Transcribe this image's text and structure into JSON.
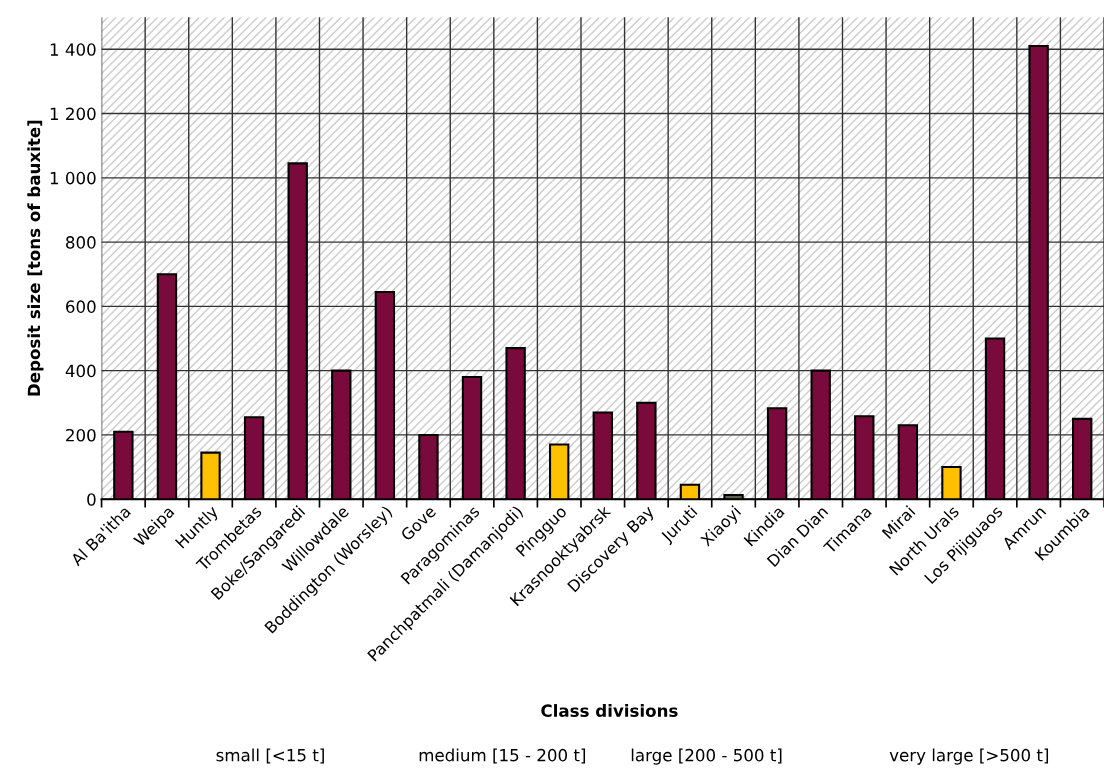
{
  "chart_data": {
    "type": "bar",
    "ylabel": "Deposit size [tons of bauxite]",
    "categories": [
      "Al Ba'itha",
      "Weipa",
      "Huntly",
      "Trombetas",
      "Boke/Sangaredi",
      "Willowdale",
      "Boddington (Worsley)",
      "Gove",
      "Paragominas",
      "Panchpatmali (Damanjodi)",
      "Pingguo",
      "Krasnooktyabrsk",
      "Discovery Bay",
      "Juruti",
      "Xiaoyi",
      "Kindia",
      "Dian Dian",
      "Timana",
      "Mirai",
      "North Urals",
      "Los Pijiguaos",
      "Amrun",
      "Koumbia"
    ],
    "values": [
      210,
      700,
      145,
      255,
      1045,
      400,
      645,
      200,
      380,
      470,
      170,
      270,
      300,
      45,
      13,
      283,
      400,
      258,
      230,
      100,
      500,
      1410,
      250
    ],
    "colors": [
      "#7b0a3c",
      "#7b0a3c",
      "#ffc000",
      "#7b0a3c",
      "#7b0a3c",
      "#7b0a3c",
      "#7b0a3c",
      "#7b0a3c",
      "#7b0a3c",
      "#7b0a3c",
      "#ffc000",
      "#7b0a3c",
      "#7b0a3c",
      "#ffc000",
      "#5b6350",
      "#7b0a3c",
      "#7b0a3c",
      "#7b0a3c",
      "#7b0a3c",
      "#ffc000",
      "#7b0a3c",
      "#7b0a3c",
      "#7b0a3c"
    ],
    "ylim": [
      0,
      1500
    ],
    "yticks": [
      {
        "value": 0,
        "label": "0"
      },
      {
        "value": 200,
        "label": "200"
      },
      {
        "value": 400,
        "label": "400"
      },
      {
        "value": 600,
        "label": "600"
      },
      {
        "value": 800,
        "label": "800"
      },
      {
        "value": 1000,
        "label": "1 000"
      },
      {
        "value": 1200,
        "label": "1 200"
      },
      {
        "value": 1400,
        "label": "1 400"
      }
    ],
    "grid": true,
    "annotations": [
      "Class divisions",
      "small [<15 t]",
      "medium [15 - 200 t]",
      "large [200 - 500 t]",
      "very large [>500 t]"
    ]
  }
}
